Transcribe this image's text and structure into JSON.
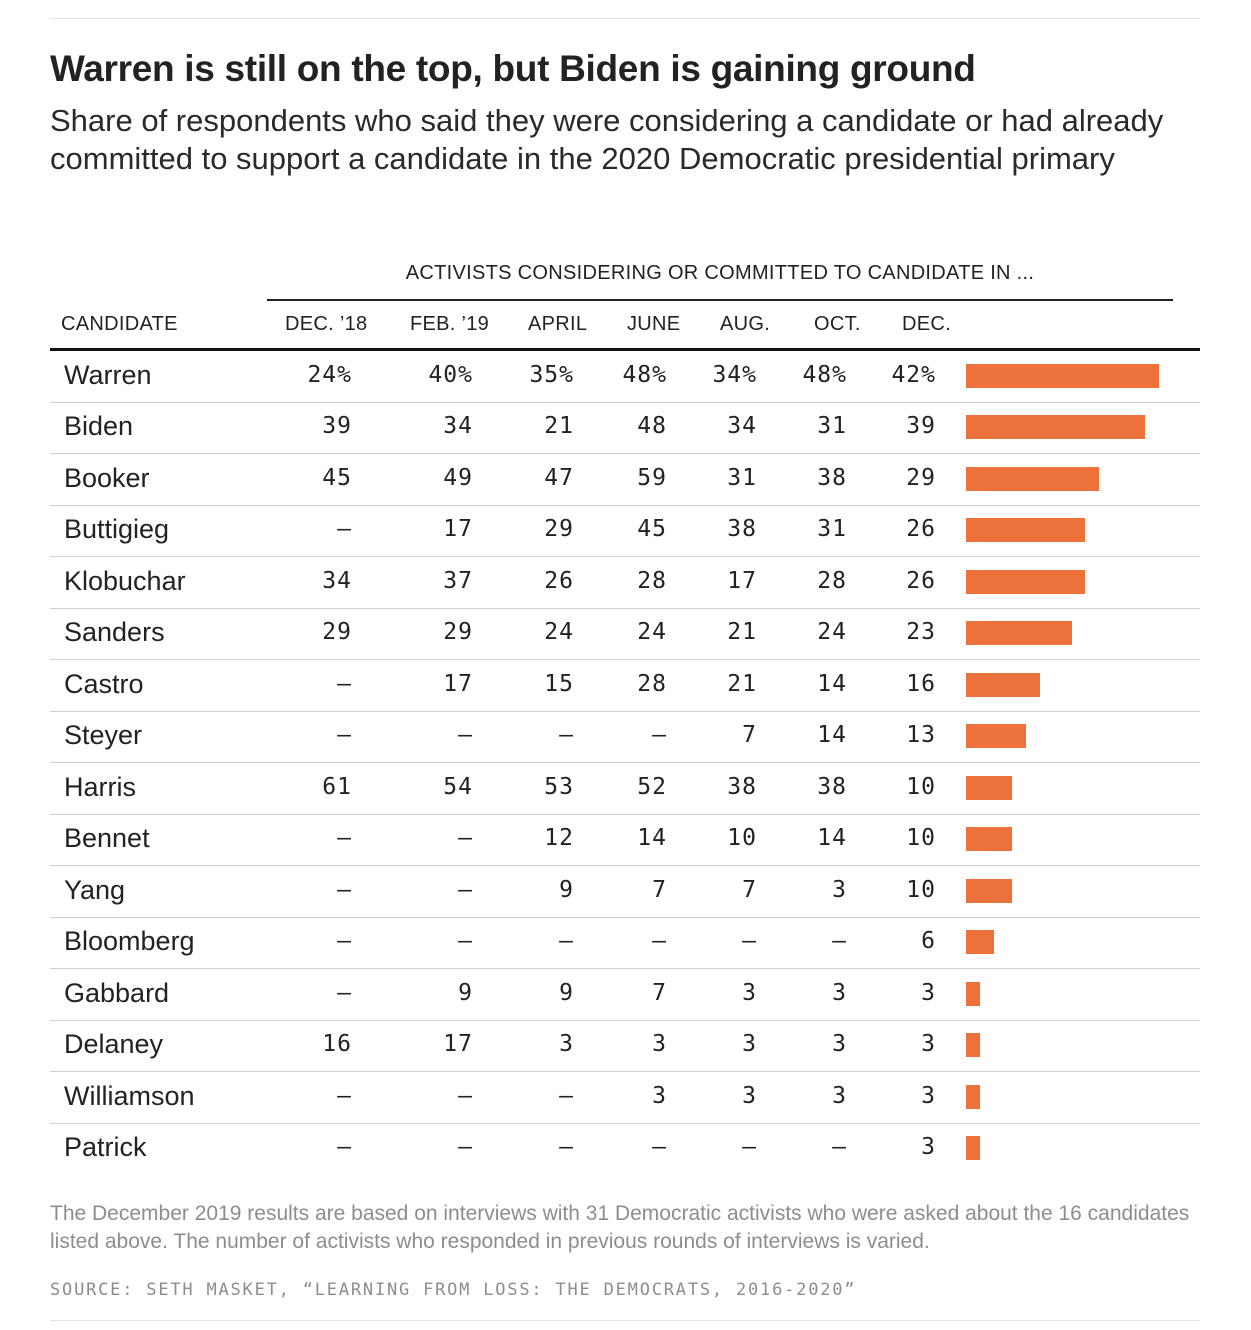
{
  "title": "Warren is still on the top, but Biden is gaining ground",
  "subtitle": "Share of respondents who said they were considering a candidate or had already committed to support a candidate in the 2020 Democratic presidential primary",
  "group_header": "ACTIVISTS CONSIDERING OR COMMITTED TO CANDIDATE IN ...",
  "columns": [
    "CANDIDATE",
    "DEC. ’18",
    "FEB. ’19",
    "APRIL",
    "JUNE",
    "AUG.",
    "OCT.",
    "DEC."
  ],
  "note": "The December 2019 results are based on interviews with 31 Democratic activists who were asked about the 16 candidates listed above. The number of activists who responded in previous rounds of interviews is varied.",
  "source": "SOURCE: SETH MASKET, “LEARNING FROM LOSS: THE DEMOCRATS, 2016-2020”",
  "colors": {
    "bar": "#ed713a",
    "text": "#222222",
    "muted": "#8d8d8d"
  },
  "chart_data": {
    "type": "table",
    "title": "Warren is still on the top, but Biden is gaining ground",
    "periods": [
      "DEC. ’18",
      "FEB. ’19",
      "APRIL",
      "JUNE",
      "AUG.",
      "OCT.",
      "DEC."
    ],
    "unit": "%",
    "bar_column": "DEC.",
    "rows": [
      {
        "candidate": "Warren",
        "display": [
          "24%",
          "40%",
          "35%",
          "48%",
          "34%",
          "48%",
          "42%"
        ],
        "values": [
          24,
          40,
          35,
          48,
          34,
          48,
          42
        ]
      },
      {
        "candidate": "Biden",
        "display": [
          "39",
          "34",
          "21",
          "48",
          "34",
          "31",
          "39"
        ],
        "values": [
          39,
          34,
          21,
          48,
          34,
          31,
          39
        ]
      },
      {
        "candidate": "Booker",
        "display": [
          "45",
          "49",
          "47",
          "59",
          "31",
          "38",
          "29"
        ],
        "values": [
          45,
          49,
          47,
          59,
          31,
          38,
          29
        ]
      },
      {
        "candidate": "Buttigieg",
        "display": [
          "–",
          "17",
          "29",
          "45",
          "38",
          "31",
          "26"
        ],
        "values": [
          null,
          17,
          29,
          45,
          38,
          31,
          26
        ]
      },
      {
        "candidate": "Klobuchar",
        "display": [
          "34",
          "37",
          "26",
          "28",
          "17",
          "28",
          "26"
        ],
        "values": [
          34,
          37,
          26,
          28,
          17,
          28,
          26
        ]
      },
      {
        "candidate": "Sanders",
        "display": [
          "29",
          "29",
          "24",
          "24",
          "21",
          "24",
          "23"
        ],
        "values": [
          29,
          29,
          24,
          24,
          21,
          24,
          23
        ]
      },
      {
        "candidate": "Castro",
        "display": [
          "–",
          "17",
          "15",
          "28",
          "21",
          "14",
          "16"
        ],
        "values": [
          null,
          17,
          15,
          28,
          21,
          14,
          16
        ]
      },
      {
        "candidate": "Steyer",
        "display": [
          "–",
          "–",
          "–",
          "–",
          "7",
          "14",
          "13"
        ],
        "values": [
          null,
          null,
          null,
          null,
          7,
          14,
          13
        ]
      },
      {
        "candidate": "Harris",
        "display": [
          "61",
          "54",
          "53",
          "52",
          "38",
          "38",
          "10"
        ],
        "values": [
          61,
          54,
          53,
          52,
          38,
          38,
          10
        ]
      },
      {
        "candidate": "Bennet",
        "display": [
          "–",
          "–",
          "12",
          "14",
          "10",
          "14",
          "10"
        ],
        "values": [
          null,
          null,
          12,
          14,
          10,
          14,
          10
        ]
      },
      {
        "candidate": "Yang",
        "display": [
          "–",
          "–",
          "9",
          "7",
          "7",
          "3",
          "10"
        ],
        "values": [
          null,
          null,
          9,
          7,
          7,
          3,
          10
        ]
      },
      {
        "candidate": "Bloomberg",
        "display": [
          "–",
          "–",
          "–",
          "–",
          "–",
          "–",
          "6"
        ],
        "values": [
          null,
          null,
          null,
          null,
          null,
          null,
          6
        ]
      },
      {
        "candidate": "Gabbard",
        "display": [
          "–",
          "9",
          "9",
          "7",
          "3",
          "3",
          "3"
        ],
        "values": [
          null,
          9,
          9,
          7,
          3,
          3,
          3
        ]
      },
      {
        "candidate": "Delaney",
        "display": [
          "16",
          "17",
          "3",
          "3",
          "3",
          "3",
          "3"
        ],
        "values": [
          16,
          17,
          3,
          3,
          3,
          3,
          3
        ]
      },
      {
        "candidate": "Williamson",
        "display": [
          "–",
          "–",
          "–",
          "3",
          "3",
          "3",
          "3"
        ],
        "values": [
          null,
          null,
          null,
          3,
          3,
          3,
          3
        ]
      },
      {
        "candidate": "Patrick",
        "display": [
          "–",
          "–",
          "–",
          "–",
          "–",
          "–",
          "3"
        ],
        "values": [
          null,
          null,
          null,
          null,
          null,
          null,
          3
        ]
      }
    ]
  }
}
